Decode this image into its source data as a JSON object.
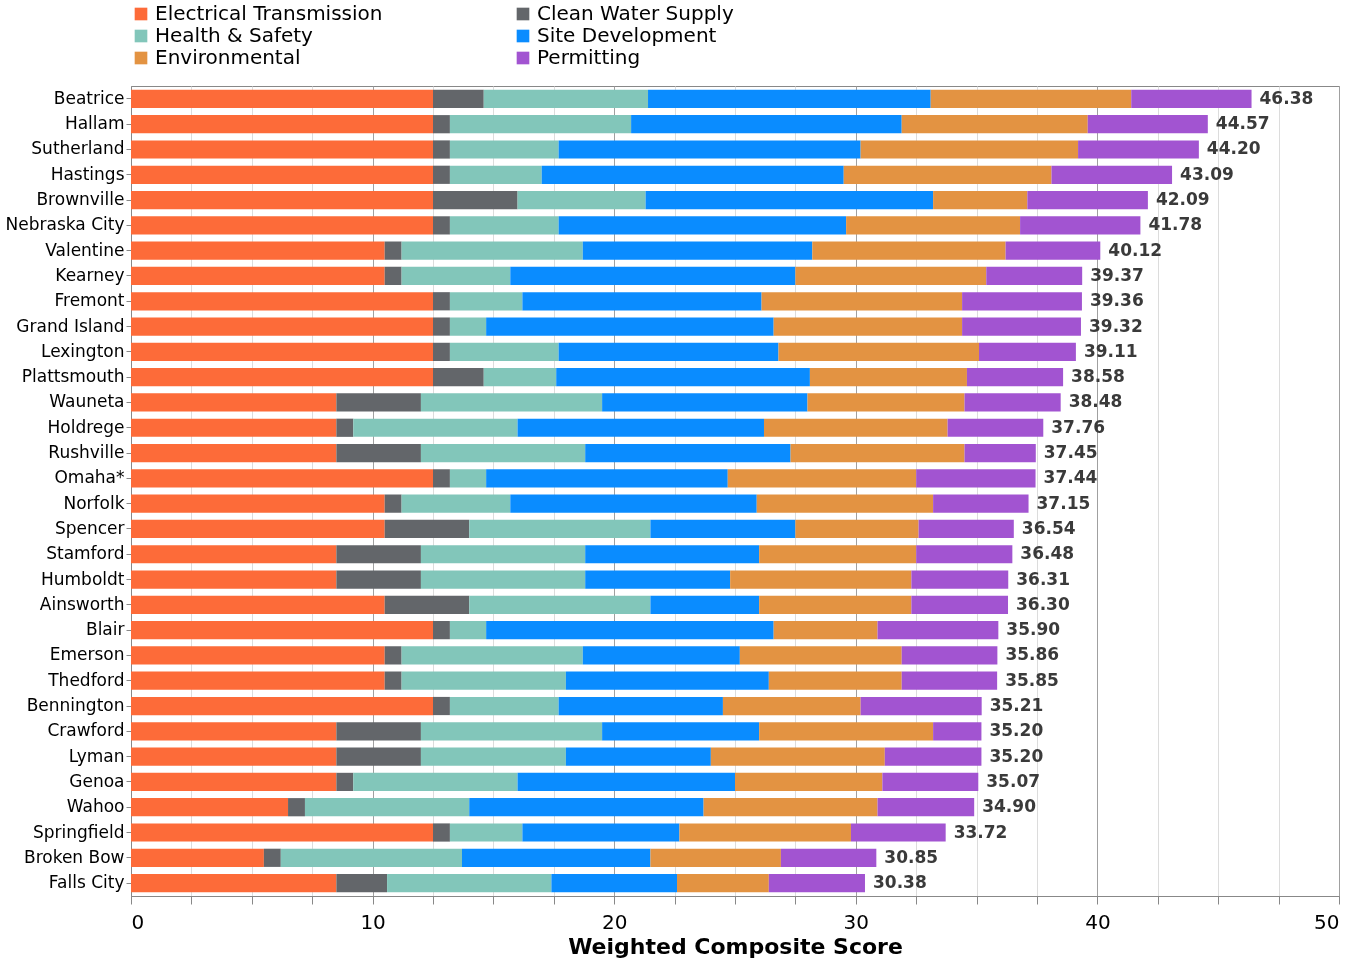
{
  "chart_data": {
    "type": "bar",
    "orientation": "horizontal",
    "stacked": true,
    "xlabel": "Weighted Composite Score",
    "legend": "top",
    "grid": true,
    "xlim": [
      0,
      50
    ],
    "xticks": [
      0,
      {
        "value": 2.5,
        "label": null
      },
      {
        "value": 5,
        "label": null
      },
      {
        "value": 7.5,
        "label": null
      },
      10,
      {
        "value": 12.5,
        "label": null
      },
      {
        "value": 15,
        "label": null
      },
      {
        "value": 17.5,
        "label": null
      },
      20,
      {
        "value": 22.5,
        "label": null
      },
      {
        "value": 25,
        "label": null
      },
      {
        "value": 27.5,
        "label": null
      },
      30,
      {
        "value": 32.5,
        "label": null
      },
      {
        "value": 35,
        "label": null
      },
      {
        "value": 37.5,
        "label": null
      },
      40,
      {
        "value": 42.5,
        "label": null
      },
      {
        "value": 45,
        "label": null
      },
      {
        "value": 47.5,
        "label": null
      },
      50
    ],
    "categories": [
      "Beatrice",
      "Hallam",
      "Sutherland",
      "Hastings",
      "Brownville",
      "Nebraska City",
      "Valentine",
      "Kearney",
      "Fremont",
      "Grand Island",
      "Lexington",
      "Plattsmouth",
      "Wauneta",
      "Holdrege",
      "Rushville",
      "Omaha*",
      "Norfolk",
      "Spencer",
      "Stamford",
      "Humboldt",
      "Ainsworth",
      "Blair",
      "Emerson",
      "Thedford",
      "Bennington",
      "Crawford",
      "Lyman",
      "Genoa",
      "Wahoo",
      "Springfield",
      "Broken Bow",
      "Falls City"
    ],
    "series": [
      {
        "name": "Electrical Transmission",
        "color": "#fd6b39",
        "values": [
          12.5,
          12.5,
          12.5,
          12.5,
          12.5,
          12.5,
          10.5,
          10.5,
          12.5,
          12.5,
          12.5,
          12.5,
          8.5,
          8.5,
          8.5,
          12.5,
          10.5,
          10.5,
          8.5,
          8.5,
          10.5,
          12.5,
          10.5,
          10.5,
          12.5,
          8.5,
          8.5,
          8.5,
          6.5,
          12.5,
          5.5,
          8.5
        ]
      },
      {
        "name": "Clean Water Supply",
        "color": "#63666a",
        "values": [
          2.1,
          0.7,
          0.7,
          0.7,
          3.5,
          0.7,
          0.7,
          0.7,
          0.7,
          0.7,
          0.7,
          2.1,
          3.5,
          0.7,
          3.5,
          0.7,
          0.7,
          3.5,
          3.5,
          3.5,
          3.5,
          0.7,
          0.7,
          0.7,
          0.7,
          3.5,
          3.5,
          0.7,
          0.7,
          0.7,
          0.7,
          2.1
        ]
      },
      {
        "name": "Health & Safety",
        "color": "#82c6ba",
        "values": [
          6.8,
          7.5,
          4.5,
          3.8,
          5.3,
          4.5,
          7.5,
          4.5,
          3.0,
          1.5,
          4.5,
          3.0,
          7.5,
          6.8,
          6.8,
          1.5,
          4.5,
          7.5,
          6.8,
          6.8,
          7.5,
          1.5,
          7.5,
          6.8,
          4.5,
          7.5,
          6.0,
          6.8,
          6.8,
          3.0,
          7.5,
          6.8
        ]
      },
      {
        "name": "Site Development",
        "color": "#0a8cff",
        "values": [
          11.7,
          11.2,
          12.5,
          12.5,
          11.9,
          11.9,
          9.5,
          11.8,
          9.9,
          11.9,
          9.1,
          10.5,
          8.5,
          10.2,
          8.5,
          10.0,
          10.2,
          6.0,
          7.2,
          6.0,
          4.5,
          11.9,
          6.5,
          8.4,
          6.8,
          6.5,
          6.0,
          9.0,
          9.7,
          6.5,
          7.8,
          5.2
        ]
      },
      {
        "name": "Environmental",
        "color": "#e39342",
        "values": [
          8.3,
          7.7,
          9.0,
          8.6,
          3.9,
          7.2,
          8.0,
          7.9,
          8.3,
          7.8,
          8.3,
          6.5,
          6.5,
          7.6,
          7.2,
          7.8,
          7.3,
          5.1,
          6.5,
          7.5,
          6.3,
          4.3,
          6.7,
          5.5,
          5.7,
          7.2,
          7.2,
          6.1,
          7.2,
          7.1,
          5.4,
          3.8
        ]
      },
      {
        "name": "Permitting",
        "color": "#a254d1",
        "values": [
          4.98,
          4.97,
          5.0,
          4.99,
          4.99,
          4.98,
          3.92,
          3.97,
          4.96,
          4.92,
          4.01,
          3.98,
          3.98,
          3.96,
          2.95,
          4.94,
          3.95,
          3.94,
          3.98,
          4.01,
          4.0,
          5.0,
          3.96,
          3.95,
          5.01,
          2.0,
          4.0,
          3.97,
          4.0,
          3.92,
          3.95,
          3.98
        ]
      }
    ],
    "totals": [
      "46.38",
      "44.57",
      "44.20",
      "43.09",
      "42.09",
      "41.78",
      "40.12",
      "39.37",
      "39.36",
      "39.32",
      "39.11",
      "38.58",
      "38.48",
      "37.76",
      "37.45",
      "37.44",
      "37.15",
      "36.54",
      "36.48",
      "36.31",
      "36.30",
      "35.90",
      "35.86",
      "35.85",
      "35.21",
      "35.20",
      "35.20",
      "35.07",
      "34.90",
      "33.72",
      "30.85",
      "30.38"
    ]
  }
}
